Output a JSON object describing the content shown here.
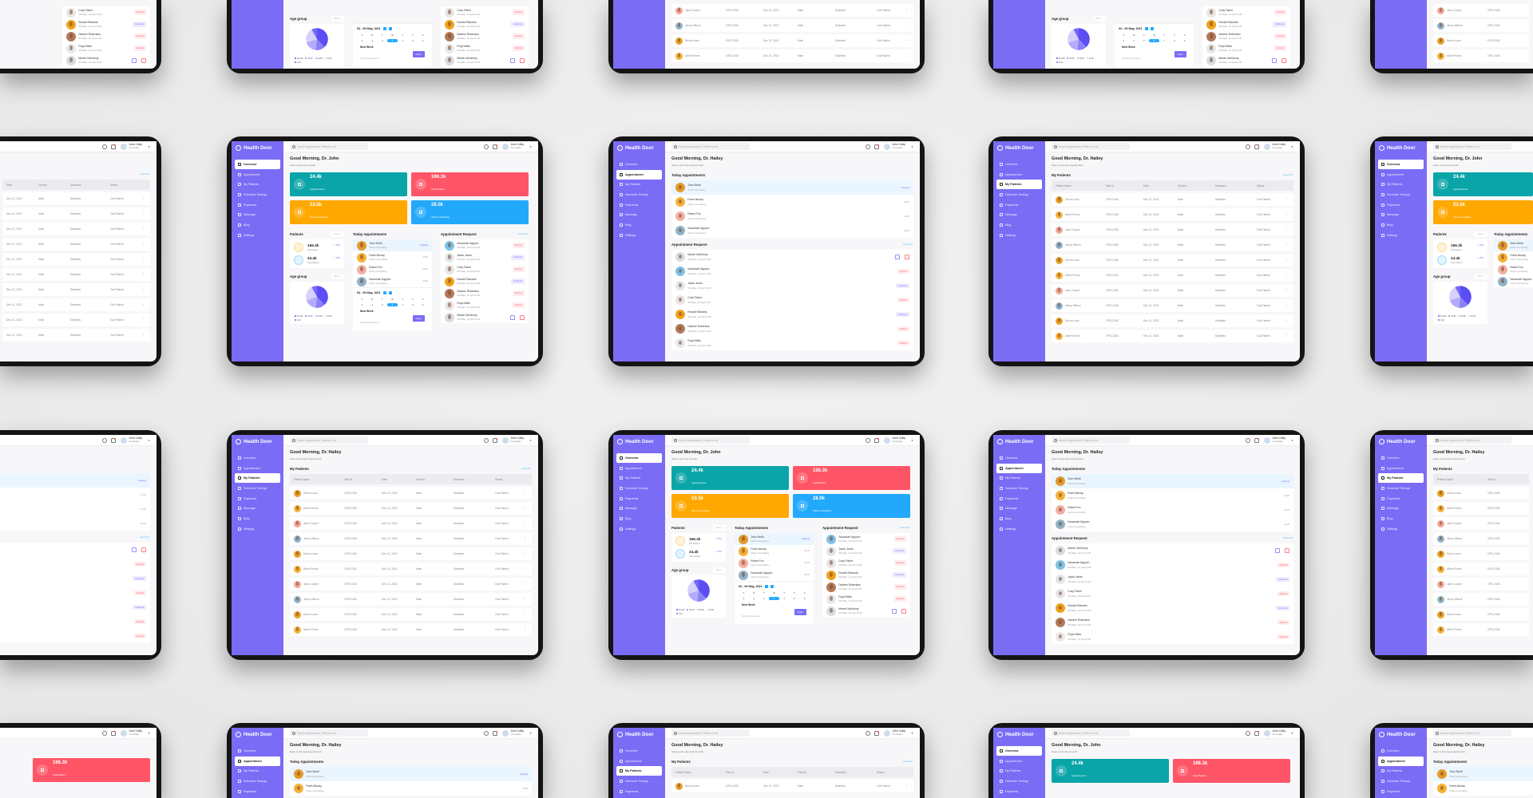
{
  "app": {
    "brand": "Health Door",
    "search_placeholder": "Search Appointment, Patient or etc",
    "user_name": "John Colby",
    "user_role": "Oncologist",
    "accent": "#7b6cf6"
  },
  "sidebar": {
    "items": [
      {
        "label": "Overview",
        "icon": "grid-icon"
      },
      {
        "label": "Appointment",
        "icon": "calendar-icon"
      },
      {
        "label": "My Patients",
        "icon": "user-icon"
      },
      {
        "label": "Schedule Timings",
        "icon": "clock-icon"
      },
      {
        "label": "Payments",
        "icon": "card-icon"
      },
      {
        "label": "Message",
        "icon": "message-icon"
      },
      {
        "label": "Blog",
        "icon": "document-icon"
      },
      {
        "label": "Settings",
        "icon": "gear-icon"
      }
    ]
  },
  "dashboard": {
    "greeting": "Good Morning, Dr. John",
    "subtitle": "Have a nice day at work",
    "stats": [
      {
        "value": "24.4k",
        "label": "Appointments",
        "color": "#0aa5a8"
      },
      {
        "value": "166.3k",
        "label": "Total Patient",
        "color": "#ff5567"
      },
      {
        "value": "53.5k",
        "label": "Clinic Consulting",
        "color": "#ffa800"
      },
      {
        "value": "28.0k",
        "label": "Video Consulting",
        "color": "#23a9fb"
      }
    ],
    "patients": {
      "title": "Patients",
      "year": "2020",
      "rows": [
        {
          "value": "166.3k",
          "label": "Old Patient",
          "change": "↗ 15%",
          "color": "#ffa800"
        },
        {
          "value": "24.4k",
          "label": "New Patient",
          "change": "↗ 15%",
          "color": "#23a9fb"
        }
      ]
    },
    "age_group": {
      "title": "Age group",
      "year": "2020",
      "legend": [
        {
          "label": "60-100",
          "color": "#5b4ef5",
          "share": 38
        },
        {
          "label": "50-60",
          "color": "#8a80f8",
          "share": 14
        },
        {
          "label": "40-50",
          "color": "#b3acfa",
          "share": 18
        },
        {
          "label": "20-40",
          "color": "#d5d1fc",
          "share": 22
        },
        {
          "label": "0-20",
          "color": "#7469f7",
          "share": 8
        }
      ]
    },
    "calendar": {
      "range": "03 - 09 May, 2021",
      "weekdays": [
        "S",
        "M",
        "T",
        "W",
        "T",
        "F",
        "S"
      ],
      "dates": [
        "3",
        "4",
        "5",
        "6",
        "7",
        "8",
        "9"
      ],
      "next_title": "Next Week",
      "next_sub": "Upcoming Schedules-2",
      "open_label": "Open"
    },
    "request_order": [
      1,
      2,
      3,
      4,
      5,
      6,
      0
    ]
  },
  "appointments_page": {
    "greeting": "Good Morning, Dr. Hailey",
    "subtitle": "Have a nice day at great work"
  },
  "today": {
    "title": "Today Appointments",
    "items": [
      {
        "name": "Jhon Smith",
        "type": "Clinic Consulting",
        "time": "Ongoing",
        "avatar": "#e59a2c"
      },
      {
        "name": "Frank Murray",
        "type": "Video Consulting",
        "time": "10:25",
        "avatar": "#f4b23a"
      },
      {
        "name": "Robert Fox",
        "type": "Clinic Consulting",
        "time": "10:25",
        "avatar": "#f3b0a4"
      },
      {
        "name": "Savannah Nguyen",
        "type": "Clinic Consulting",
        "time": "10:25",
        "avatar": "#8fb4c9"
      }
    ]
  },
  "requests": {
    "title": "Appointment Request",
    "view_all": "View All >",
    "items": [
      {
        "name": "Marvin McKinney",
        "info": "45 Male, 12 April 9:30",
        "status": "",
        "avatar": "#d9dde2"
      },
      {
        "name": "Savannah Nguyen",
        "info": "45 Male, 12 April 9:30",
        "status": "Declined",
        "avatar": "#7ec2e6"
      },
      {
        "name": "Jacob Jones",
        "info": "45 Male, 12 April 9:30",
        "status": "Confirmed",
        "avatar": "#e3e6ea"
      },
      {
        "name": "Cody Fisher",
        "info": "45 Male, 12 April 9:30",
        "status": "Declined",
        "avatar": "#e6e6e6"
      },
      {
        "name": "Ronald Richards",
        "info": "45 Male, 12 April 9:30",
        "status": "Confirmed",
        "avatar": "#f0a21c"
      },
      {
        "name": "Darlene Robertson",
        "info": "45 Male, 12 April 9:30",
        "status": "Declined",
        "avatar": "#b07a5a"
      },
      {
        "name": "Floyd Miles",
        "info": "45 Male, 12 April 9:30",
        "status": "Declined",
        "avatar": "#e8e8e8"
      }
    ]
  },
  "patients_page": {
    "greeting": "Good Morning, Dr. Hailey",
    "subtitle": "Have a nice day at great work",
    "title": "My Patients",
    "view_all": "View All >",
    "columns": [
      "Patient Name",
      "Visit Id",
      "Date",
      "Gender",
      "Diseases",
      "Status"
    ],
    "rows": [
      {
        "name": "Devon Lane",
        "visit": "OPD-2345",
        "date": "Dec 21, 2022",
        "gender": "Male",
        "disease": "Diabetes",
        "status": "Out-Patient",
        "avatar": "#e8a22a"
      },
      {
        "name": "Albert Flores",
        "visit": "OPD-2345",
        "date": "Dec 21, 2022",
        "gender": "Male",
        "disease": "Diabetes",
        "status": "Out-Patient",
        "avatar": "#f4b23a"
      },
      {
        "name": "Jane Cooper",
        "visit": "OPD-2345",
        "date": "Dec 21, 2022",
        "gender": "Male",
        "disease": "Diabetes",
        "status": "Out-Patient",
        "avatar": "#f3a89a"
      },
      {
        "name": "Jenny Wilson",
        "visit": "OPD-2345",
        "date": "Dec 21, 2022",
        "gender": "Male",
        "disease": "Diabetes",
        "status": "Out-Patient",
        "avatar": "#8fb4c9"
      },
      {
        "name": "Devon Lane",
        "visit": "OPD-2345",
        "date": "Dec 21, 2022",
        "gender": "Male",
        "disease": "Diabetes",
        "status": "Out-Patient",
        "avatar": "#e8a22a"
      },
      {
        "name": "Albert Flores",
        "visit": "OPD-2345",
        "date": "Dec 21, 2022",
        "gender": "Male",
        "disease": "Diabetes",
        "status": "Out-Patient",
        "avatar": "#f4b23a"
      },
      {
        "name": "Jane Cooper",
        "visit": "OPD-2345",
        "date": "Dec 21, 2022",
        "gender": "Male",
        "disease": "Diabetes",
        "status": "Out-Patient",
        "avatar": "#f3a89a"
      },
      {
        "name": "Jenny Wilson",
        "visit": "OPD-2345",
        "date": "Dec 21, 2022",
        "gender": "Male",
        "disease": "Diabetes",
        "status": "Out-Patient",
        "avatar": "#8fb4c9"
      },
      {
        "name": "Devon Lane",
        "visit": "OPD-2345",
        "date": "Dec 21, 2022",
        "gender": "Male",
        "disease": "Diabetes",
        "status": "Out-Patient",
        "avatar": "#e8a22a"
      },
      {
        "name": "Albert Flores",
        "visit": "OPD-2345",
        "date": "Dec 21, 2022",
        "gender": "Male",
        "disease": "Diabetes",
        "status": "Out-Patient",
        "avatar": "#f4b23a"
      }
    ]
  },
  "mockup_grid": [
    [
      "dashboard",
      "dashboard",
      "patients",
      "dashboard",
      "patients"
    ],
    [
      "patients",
      "dashboard",
      "appointments",
      "patients",
      "dashboard"
    ],
    [
      "appointments",
      "patients",
      "dashboard",
      "appointments",
      "patients"
    ],
    [
      "dashboard",
      "appointments",
      "patients",
      "dashboard",
      "appointments"
    ]
  ]
}
